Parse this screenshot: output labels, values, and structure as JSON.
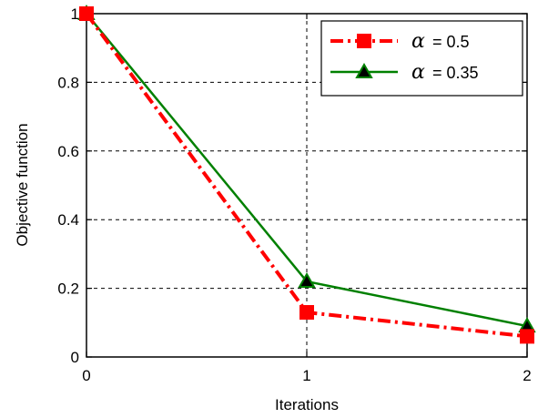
{
  "chart_data": {
    "type": "line",
    "title": "",
    "xlabel": "Iterations",
    "ylabel": "Objective function",
    "x": [
      0,
      1,
      2
    ],
    "xlim": [
      0,
      2
    ],
    "ylim": [
      0,
      1
    ],
    "xticks": [
      "0",
      "1",
      "2"
    ],
    "yticks": [
      "0",
      "0.2",
      "0.4",
      "0.6",
      "0.8",
      "1"
    ],
    "grid": true,
    "legend_position": "top-right",
    "series": [
      {
        "name": "= 0.5",
        "symbol": "α",
        "values": [
          1.0,
          0.13,
          0.06
        ],
        "color": "#ff0000",
        "line_style": "dash-dot",
        "marker": "square"
      },
      {
        "name": "= 0.35",
        "symbol": "α",
        "values": [
          1.0,
          0.22,
          0.09
        ],
        "color": "#008000",
        "line_style": "solid",
        "marker": "triangle"
      }
    ]
  }
}
